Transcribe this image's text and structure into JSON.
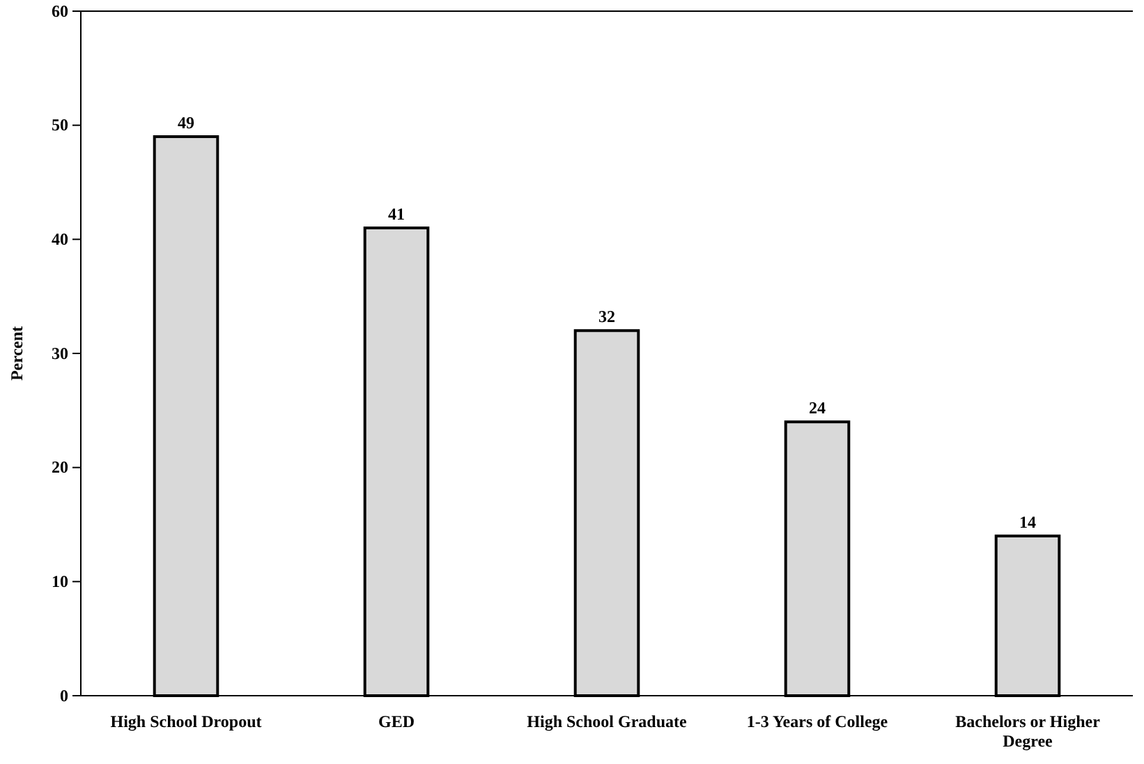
{
  "chart_data": {
    "type": "bar",
    "ylabel": "Percent",
    "categories": [
      "High School Dropout",
      "GED",
      "High School Graduate",
      "1-3 Years of College",
      "Bachelors or Higher Degree"
    ],
    "values": [
      49,
      41,
      32,
      24,
      14
    ],
    "color": "#d9d9d9",
    "ylim": [
      0,
      60
    ],
    "yticks": [
      0,
      10,
      20,
      30,
      40,
      50,
      60
    ],
    "grid": false,
    "data_labels": true
  }
}
